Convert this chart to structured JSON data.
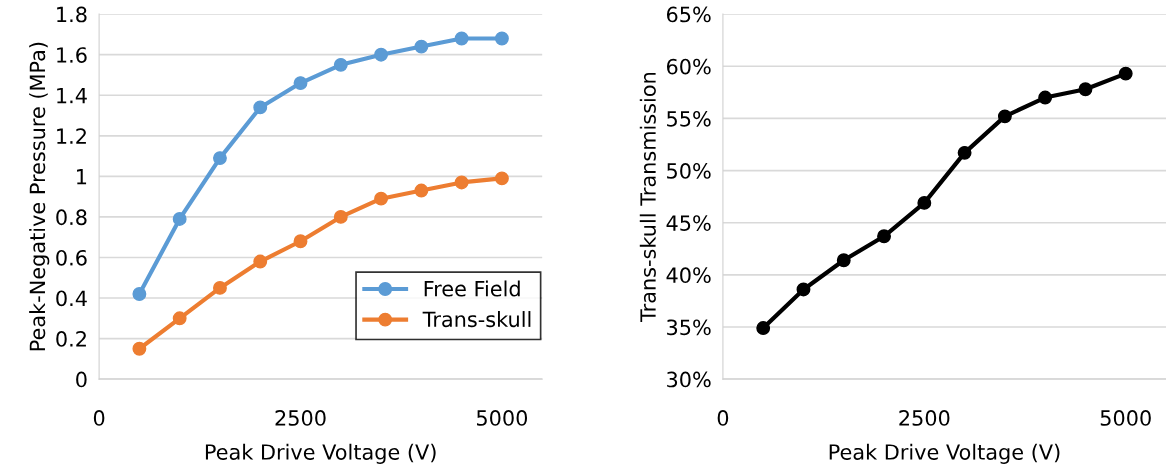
{
  "chart_data": [
    {
      "type": "line",
      "xlabel": "Peak Drive Voltage (V)",
      "ylabel": "Peak-Negative Pressure (MPa)",
      "x": [
        500,
        1000,
        1500,
        2000,
        2500,
        3000,
        3500,
        4000,
        4500,
        5000
      ],
      "series": [
        {
          "name": "Free Field",
          "color": "#5b9bd5",
          "values": [
            0.42,
            0.79,
            1.09,
            1.34,
            1.46,
            1.55,
            1.6,
            1.64,
            1.68,
            1.68
          ]
        },
        {
          "name": "Trans-skull",
          "color": "#ed7d31",
          "values": [
            0.15,
            0.3,
            0.45,
            0.58,
            0.68,
            0.8,
            0.89,
            0.93,
            0.97,
            0.99
          ]
        }
      ],
      "xlim": [
        0,
        5500
      ],
      "xticks": [
        0,
        2500,
        5000
      ],
      "ylim": [
        0,
        1.8
      ],
      "yticks": [
        0,
        {
          "value": 0.2,
          "label": "0.2"
        },
        {
          "value": 0.4,
          "label": "0.4"
        },
        {
          "value": 0.6,
          "label": "0.6"
        },
        {
          "value": 0.8,
          "label": "0.8"
        },
        1,
        {
          "value": 1.2,
          "label": "1.2"
        },
        {
          "value": 1.4,
          "label": "1.4"
        },
        {
          "value": 1.6,
          "label": "1.6"
        },
        {
          "value": 1.8,
          "label": "1.8"
        }
      ],
      "grid": "y",
      "legend": "bottom right",
      "marker": "circle",
      "line_style": "solid"
    },
    {
      "type": "line",
      "xlabel": "Peak Drive Voltage (V)",
      "ylabel": "Trans-skull Transmission",
      "x": [
        500,
        1000,
        1500,
        2000,
        2500,
        3000,
        3500,
        4000,
        4500,
        5000
      ],
      "series": [
        {
          "color": "#000000",
          "values": [
            34.9,
            38.6,
            41.4,
            43.7,
            46.9,
            51.7,
            55.2,
            57.0,
            57.8,
            59.3
          ]
        }
      ],
      "xlim": [
        0,
        5500
      ],
      "xticks": [
        0,
        2500,
        5000
      ],
      "ylim": [
        30,
        65
      ],
      "yticks": [
        {
          "value": 30,
          "label": "30%"
        },
        {
          "value": 35,
          "label": "35%"
        },
        {
          "value": 40,
          "label": "40%"
        },
        {
          "value": 45,
          "label": "45%"
        },
        {
          "value": 50,
          "label": "50%"
        },
        {
          "value": 55,
          "label": "55%"
        },
        {
          "value": 60,
          "label": "60%"
        },
        {
          "value": 65,
          "label": "65%"
        }
      ],
      "grid": "y",
      "marker": "circle",
      "line_style": "solid"
    }
  ]
}
